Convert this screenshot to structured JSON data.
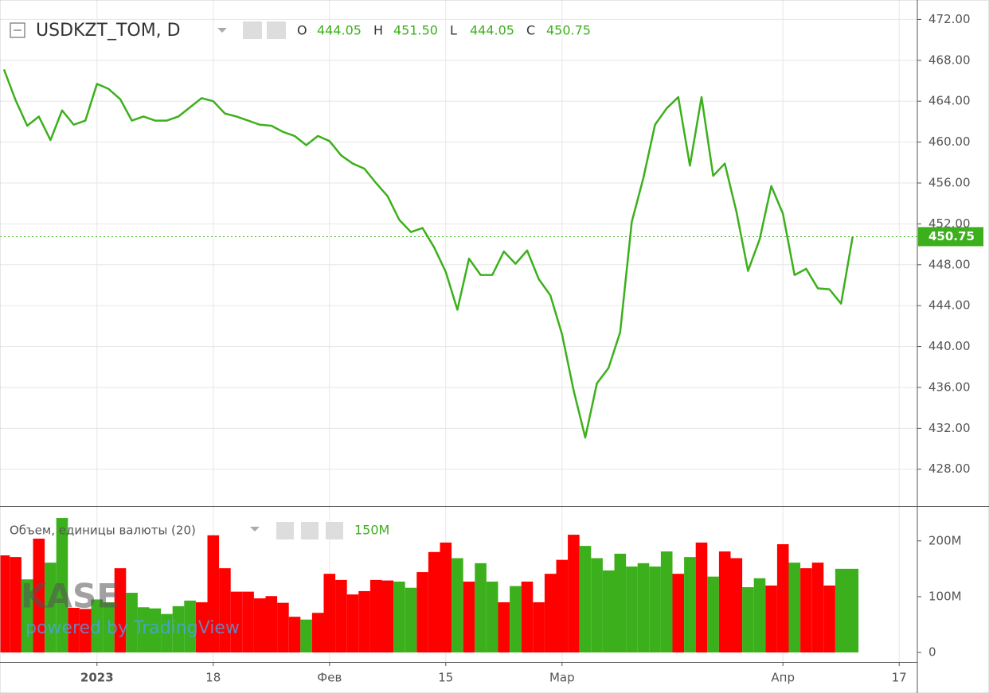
{
  "header": {
    "symbol": "USDKZT_TOM, D",
    "ohlc": [
      {
        "key": "O",
        "value": "444.05"
      },
      {
        "key": "H",
        "value": "451.50"
      },
      {
        "key": "L",
        "value": "444.05"
      },
      {
        "key": "C",
        "value": "450.75"
      }
    ]
  },
  "watermark": {
    "logo": "KASE",
    "credit": "powered by TradingView"
  },
  "chart_data": [
    {
      "type": "line",
      "color": "#3cb01c",
      "grid": true,
      "values": [
        467.1,
        464.1,
        461.6,
        462.5,
        460.2,
        463.1,
        461.7,
        462.1,
        465.7,
        465.2,
        464.2,
        462.1,
        462.5,
        462.1,
        462.1,
        462.5,
        463.4,
        464.3,
        464.0,
        462.8,
        462.5,
        462.1,
        461.7,
        461.6,
        461.0,
        460.6,
        459.7,
        460.6,
        460.1,
        458.7,
        457.9,
        457.4,
        456.0,
        454.7,
        452.4,
        451.2,
        451.6,
        449.7,
        447.3,
        443.6,
        448.6,
        447.0,
        447.0,
        449.3,
        448.1,
        449.4,
        446.6,
        445.0,
        441.2,
        435.7,
        431.1,
        436.4,
        437.9,
        441.4,
        452.2,
        456.5,
        461.7,
        463.3,
        464.4,
        457.7,
        464.4,
        456.7,
        457.9,
        453.2,
        447.4,
        450.5,
        455.7,
        453.0,
        447.0,
        447.6,
        445.7,
        445.6,
        444.2,
        450.75,
        null,
        null,
        null,
        null
      ],
      "last_value": 450.75,
      "ylim": [
        424.4,
        473.9
      ],
      "yticks": [
        {
          "value": 428,
          "label": "428.00"
        },
        {
          "value": 432,
          "label": "432.00"
        },
        {
          "value": 436,
          "label": "436.00"
        },
        {
          "value": 440,
          "label": "440.00"
        },
        {
          "value": 444,
          "label": "444.00"
        },
        {
          "value": 448,
          "label": "448.00"
        },
        {
          "value": 452,
          "label": "452.00"
        },
        {
          "value": 456,
          "label": "456.00"
        },
        {
          "value": 460,
          "label": "460.00"
        },
        {
          "value": 464,
          "label": "464.00"
        },
        {
          "value": 468,
          "label": "468.00"
        },
        {
          "value": 472,
          "label": "472.00"
        }
      ]
    },
    {
      "type": "bar",
      "title": "Объем, единицы валюты (20)",
      "last_label": "150M",
      "grid": false,
      "categories": [
        null,
        null,
        null,
        null,
        null,
        null,
        null,
        null,
        "2023",
        null,
        null,
        null,
        null,
        null,
        null,
        null,
        null,
        null,
        "18",
        null,
        null,
        null,
        null,
        null,
        null,
        null,
        null,
        null,
        "Фев",
        null,
        null,
        null,
        null,
        null,
        null,
        null,
        null,
        null,
        "15",
        null,
        null,
        null,
        null,
        null,
        null,
        null,
        null,
        null,
        "Мар",
        null,
        null,
        null,
        null,
        null,
        null,
        null,
        null,
        null,
        null,
        null,
        null,
        null,
        null,
        null,
        null,
        null,
        null,
        "Апр",
        null,
        null,
        null,
        null,
        null,
        null,
        null,
        null,
        null,
        "17"
      ],
      "values": [
        174,
        171,
        131,
        204,
        161,
        241,
        80,
        78,
        95,
        90,
        151,
        107,
        81,
        79,
        69,
        83,
        93,
        90,
        210,
        151,
        109,
        109,
        97,
        101,
        89,
        64,
        59,
        71,
        141,
        130,
        104,
        110,
        130,
        129,
        127,
        116,
        144,
        180,
        197,
        169,
        127,
        160,
        127,
        90,
        119,
        127,
        90,
        141,
        166,
        211,
        191,
        169,
        147,
        177,
        154,
        160,
        154,
        181,
        141,
        171,
        197,
        136,
        181,
        169,
        117,
        133,
        120,
        194,
        161,
        151,
        161,
        120,
        150,
        150,
        null,
        null,
        null,
        null
      ],
      "colors": [
        "#ff0000",
        "#ff0000",
        "#3cb01c",
        "#ff0000",
        "#3cb01c",
        "#3cb01c",
        "#ff0000",
        "#ff0000",
        "#3cb01c",
        "#3cb01c",
        "#ff0000",
        "#3cb01c",
        "#3cb01c",
        "#3cb01c",
        "#3cb01c",
        "#3cb01c",
        "#3cb01c",
        "#ff0000",
        "#ff0000",
        "#ff0000",
        "#ff0000",
        "#ff0000",
        "#ff0000",
        "#ff0000",
        "#ff0000",
        "#ff0000",
        "#3cb01c",
        "#ff0000",
        "#ff0000",
        "#ff0000",
        "#ff0000",
        "#ff0000",
        "#ff0000",
        "#ff0000",
        "#3cb01c",
        "#3cb01c",
        "#ff0000",
        "#ff0000",
        "#ff0000",
        "#3cb01c",
        "#ff0000",
        "#3cb01c",
        "#3cb01c",
        "#ff0000",
        "#3cb01c",
        "#ff0000",
        "#ff0000",
        "#ff0000",
        "#ff0000",
        "#ff0000",
        "#3cb01c",
        "#3cb01c",
        "#3cb01c",
        "#3cb01c",
        "#3cb01c",
        "#3cb01c",
        "#3cb01c",
        "#3cb01c",
        "#ff0000",
        "#3cb01c",
        "#ff0000",
        "#3cb01c",
        "#ff0000",
        "#ff0000",
        "#3cb01c",
        "#3cb01c",
        "#ff0000",
        "#ff0000",
        "#3cb01c",
        "#ff0000",
        "#ff0000",
        "#ff0000",
        "#3cb01c",
        "#3cb01c",
        null,
        null,
        null,
        null
      ],
      "ylim": [
        -17,
        261
      ],
      "yticks": [
        0,
        {
          "value": 100,
          "label": "100M"
        },
        {
          "value": 200,
          "label": "200M"
        }
      ]
    }
  ]
}
